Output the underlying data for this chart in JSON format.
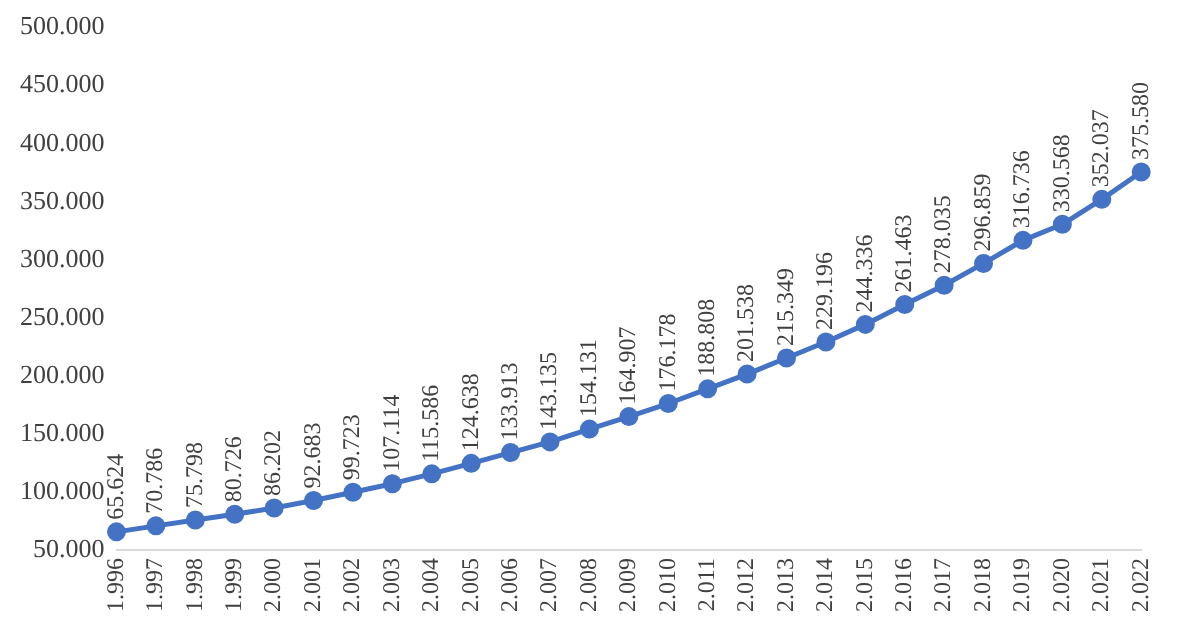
{
  "chart_data": {
    "type": "line",
    "categories": [
      "1.996",
      "1.997",
      "1.998",
      "1.999",
      "2.000",
      "2.001",
      "2.002",
      "2.003",
      "2.004",
      "2.005",
      "2.006",
      "2.007",
      "2.008",
      "2.009",
      "2.010",
      "2.011",
      "2.012",
      "2.013",
      "2.014",
      "2.015",
      "2.016",
      "2.017",
      "2.018",
      "2.019",
      "2.020",
      "2.021",
      "2.022"
    ],
    "series": [
      {
        "color": "#4472c4",
        "values": [
          65624,
          70786,
          75798,
          80726,
          86202,
          92683,
          99723,
          107114,
          115586,
          124638,
          133913,
          143135,
          154131,
          164907,
          176178,
          188808,
          201538,
          215349,
          229196,
          244336,
          261463,
          278035,
          296859,
          316736,
          330568,
          352037,
          375580
        ],
        "value_labels": [
          "65.624",
          "70.786",
          "75.798",
          "80.726",
          "86.202",
          "92.683",
          "99.723",
          "107.114",
          "115.586",
          "124.638",
          "133.913",
          "143.135",
          "154.131",
          "164.907",
          "176.178",
          "188.808",
          "201.538",
          "215.349",
          "229.196",
          "244.336",
          "261.463",
          "278.035",
          "296.859",
          "316.736",
          "330.568",
          "352.037",
          "375.580"
        ]
      }
    ],
    "ylim": [
      50000,
      500000
    ],
    "yticks": [
      {
        "value": 50000,
        "label": "50.000"
      },
      {
        "value": 100000,
        "label": "100.000"
      },
      {
        "value": 150000,
        "label": "150.000"
      },
      {
        "value": 200000,
        "label": "200.000"
      },
      {
        "value": 250000,
        "label": "250.000"
      },
      {
        "value": 300000,
        "label": "300.000"
      },
      {
        "value": 350000,
        "label": "350.000"
      },
      {
        "value": 400000,
        "label": "400.000"
      },
      {
        "value": 450000,
        "label": "450.000"
      },
      {
        "value": 500000,
        "label": "500.000"
      }
    ],
    "grid": false,
    "legend": false,
    "marker": "circle",
    "line_style": "solid"
  }
}
